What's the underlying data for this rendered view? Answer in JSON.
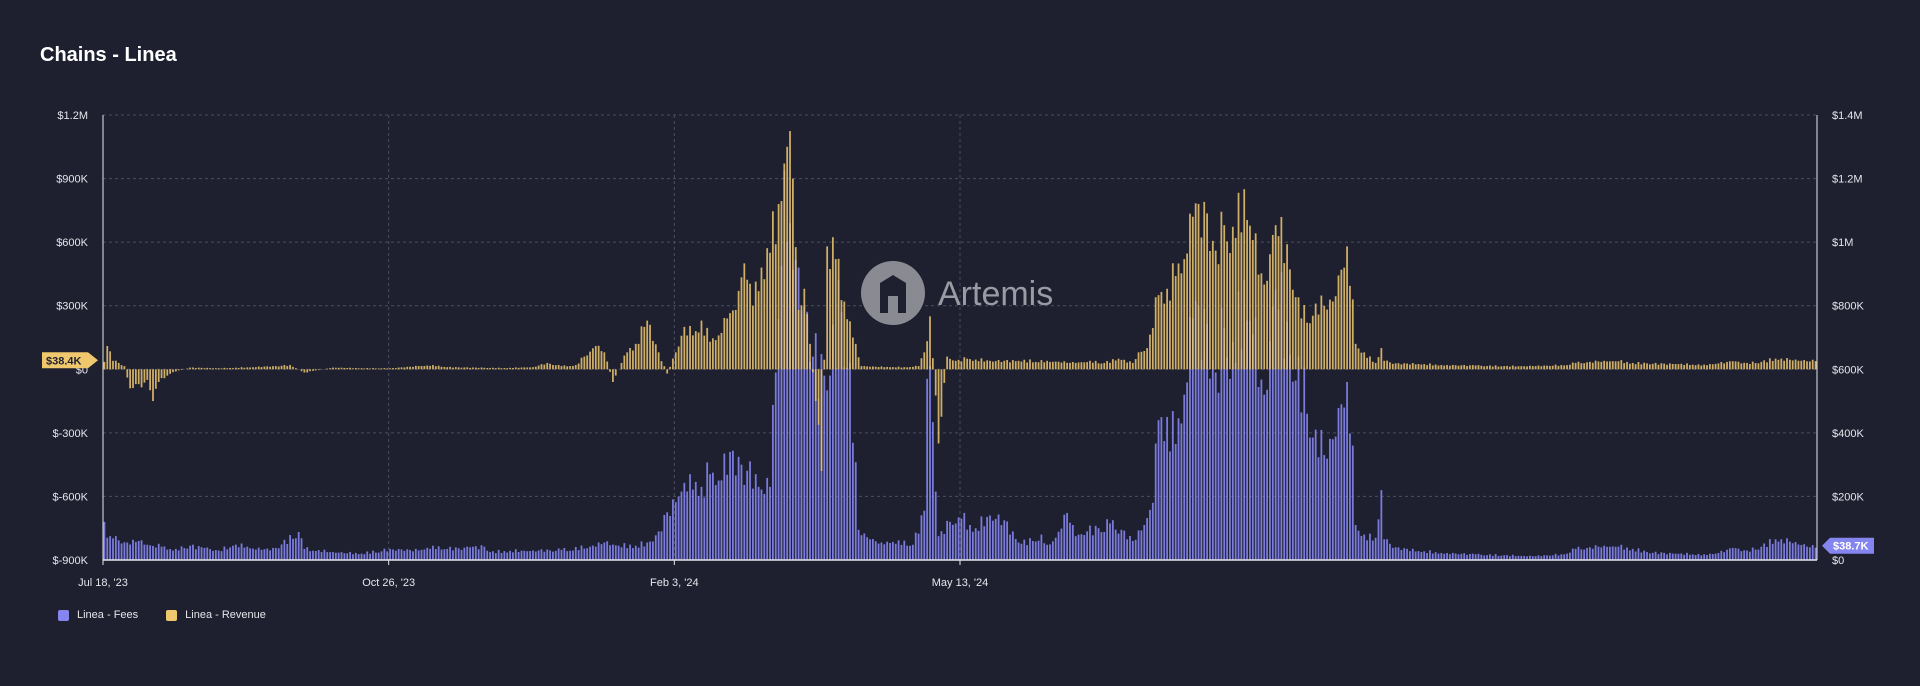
{
  "title": "Chains - Linea",
  "watermark": "Artemis",
  "colors": {
    "background": "#1e2030",
    "fees": "#8585f0",
    "revenue": "#efc86e",
    "grid": "#4a4d5e",
    "axis": "#e6e6ea"
  },
  "legend": [
    {
      "label": "Linea - Fees",
      "color": "#8585f0"
    },
    {
      "label": "Linea - Revenue",
      "color": "#efc86e"
    }
  ],
  "badges": {
    "revenue_last": "$38.4K",
    "fees_last": "$38.7K"
  },
  "chart_data": {
    "type": "bar",
    "title": "Chains - Linea",
    "x_start": "2023-07-18",
    "x_ticks": [
      "Jul 18, '23",
      "Oct 26, '23",
      "Feb 3, '24",
      "May 13, '24"
    ],
    "y_left": {
      "ticks": [
        "$1.2M",
        "$900K",
        "$600K",
        "$300K",
        "$0",
        "$-300K",
        "$-600K",
        "$-900K"
      ],
      "range": [
        -900000,
        1200000
      ]
    },
    "y_right": {
      "ticks": [
        "$1.4M",
        "$1.2M",
        "$1M",
        "$800K",
        "$600K",
        "$400K",
        "$200K",
        "$0"
      ],
      "range": [
        0,
        1400000
      ]
    },
    "grid": true,
    "legend_position": "bottom-left",
    "series": [
      {
        "name": "Linea - Fees",
        "axis": "right",
        "color": "#8585f0",
        "segments": [
          [
            0,
            120000
          ],
          [
            1,
            70000
          ],
          [
            2,
            75000
          ],
          [
            3,
            68000
          ],
          [
            5,
            62000
          ],
          [
            8,
            55000
          ],
          [
            12,
            60000
          ],
          [
            15,
            48000
          ],
          [
            20,
            42000
          ],
          [
            25,
            35000
          ],
          [
            30,
            45000
          ],
          [
            35,
            38000
          ],
          [
            40,
            30000
          ],
          [
            45,
            45000
          ],
          [
            48,
            52000
          ],
          [
            50,
            42000
          ],
          [
            55,
            32000
          ],
          [
            60,
            38000
          ],
          [
            68,
            88000
          ],
          [
            70,
            35000
          ],
          [
            80,
            25000
          ],
          [
            90,
            20000
          ],
          [
            100,
            35000
          ],
          [
            110,
            30000
          ],
          [
            115,
            45000
          ],
          [
            120,
            35000
          ],
          [
            128,
            40000
          ],
          [
            133,
            42000
          ],
          [
            135,
            25000
          ],
          [
            140,
            28000
          ],
          [
            150,
            30000
          ],
          [
            160,
            32000
          ],
          [
            170,
            42000
          ],
          [
            175,
            55000
          ],
          [
            180,
            45000
          ],
          [
            186,
            45000
          ],
          [
            190,
            55000
          ],
          [
            194,
            90000
          ],
          [
            197,
            150000
          ],
          [
            201,
            200000
          ],
          [
            205,
            270000
          ],
          [
            209,
            230000
          ],
          [
            212,
            270000
          ],
          [
            215,
            250000
          ],
          [
            219,
            340000
          ],
          [
            223,
            300000
          ],
          [
            228,
            270000
          ],
          [
            233,
            230000
          ],
          [
            235,
            590000
          ],
          [
            238,
            1225000
          ],
          [
            240,
            1060000
          ],
          [
            243,
            920000
          ],
          [
            245,
            800000
          ],
          [
            248,
            640000
          ],
          [
            252,
            580000
          ],
          [
            255,
            740000
          ],
          [
            258,
            780000
          ],
          [
            261,
            620000
          ],
          [
            264,
            95000
          ],
          [
            268,
            65000
          ],
          [
            272,
            55000
          ],
          [
            278,
            62000
          ],
          [
            283,
            48000
          ],
          [
            287,
            155000
          ],
          [
            288,
            570000
          ],
          [
            289,
            610000
          ],
          [
            291,
            215000
          ],
          [
            292,
            75000
          ],
          [
            296,
            120000
          ],
          [
            300,
            130000
          ],
          [
            305,
            100000
          ],
          [
            310,
            140000
          ],
          [
            315,
            125000
          ],
          [
            320,
            55000
          ],
          [
            325,
            60000
          ],
          [
            328,
            80000
          ],
          [
            330,
            48000
          ],
          [
            333,
            70000
          ],
          [
            337,
            148000
          ],
          [
            340,
            75000
          ],
          [
            344,
            90000
          ],
          [
            348,
            100000
          ],
          [
            352,
            115000
          ],
          [
            356,
            95000
          ],
          [
            360,
            60000
          ],
          [
            364,
            110000
          ],
          [
            367,
            180000
          ],
          [
            369,
            440000
          ],
          [
            372,
            450000
          ],
          [
            375,
            365000
          ],
          [
            378,
            520000
          ],
          [
            381,
            760000
          ],
          [
            385,
            790000
          ],
          [
            389,
            590000
          ],
          [
            392,
            730000
          ],
          [
            396,
            620000
          ],
          [
            399,
            880000
          ],
          [
            402,
            710000
          ],
          [
            406,
            520000
          ],
          [
            410,
            850000
          ],
          [
            414,
            750000
          ],
          [
            418,
            640000
          ],
          [
            421,
            460000
          ],
          [
            424,
            410000
          ],
          [
            427,
            330000
          ],
          [
            430,
            380000
          ],
          [
            433,
            490000
          ],
          [
            435,
            560000
          ],
          [
            437,
            360000
          ],
          [
            438,
            110000
          ],
          [
            441,
            80000
          ],
          [
            445,
            70000
          ],
          [
            447,
            220000
          ],
          [
            448,
            65000
          ],
          [
            452,
            40000
          ],
          [
            460,
            28000
          ],
          [
            470,
            22000
          ],
          [
            480,
            18000
          ],
          [
            490,
            15000
          ],
          [
            500,
            12000
          ],
          [
            510,
            18000
          ],
          [
            515,
            35000
          ],
          [
            520,
            40000
          ],
          [
            525,
            45000
          ],
          [
            530,
            42000
          ],
          [
            535,
            35000
          ],
          [
            540,
            25000
          ],
          [
            550,
            20000
          ],
          [
            560,
            18000
          ],
          [
            565,
            22000
          ],
          [
            570,
            38000
          ],
          [
            575,
            30000
          ],
          [
            580,
            42000
          ],
          [
            585,
            65000
          ],
          [
            590,
            58000
          ],
          [
            599,
            38700
          ]
        ]
      },
      {
        "name": "Linea - Revenue",
        "axis": "left",
        "color": "#efc86e",
        "segments": [
          [
            0,
            35000
          ],
          [
            1,
            110000
          ],
          [
            3,
            40000
          ],
          [
            5,
            30000
          ],
          [
            7,
            15000
          ],
          [
            9,
            -90000
          ],
          [
            11,
            -70000
          ],
          [
            13,
            -85000
          ],
          [
            15,
            -50000
          ],
          [
            17,
            -150000
          ],
          [
            19,
            -60000
          ],
          [
            22,
            -30000
          ],
          [
            25,
            -10000
          ],
          [
            30,
            8000
          ],
          [
            40,
            5000
          ],
          [
            50,
            9000
          ],
          [
            60,
            15000
          ],
          [
            65,
            20000
          ],
          [
            70,
            -15000
          ],
          [
            80,
            8000
          ],
          [
            90,
            5000
          ],
          [
            100,
            5000
          ],
          [
            110,
            15000
          ],
          [
            115,
            20000
          ],
          [
            120,
            10000
          ],
          [
            130,
            8000
          ],
          [
            140,
            6000
          ],
          [
            150,
            10000
          ],
          [
            155,
            30000
          ],
          [
            160,
            15000
          ],
          [
            165,
            20000
          ],
          [
            168,
            60000
          ],
          [
            172,
            110000
          ],
          [
            175,
            80000
          ],
          [
            178,
            -60000
          ],
          [
            181,
            30000
          ],
          [
            183,
            80000
          ],
          [
            186,
            120000
          ],
          [
            189,
            200000
          ],
          [
            191,
            210000
          ],
          [
            194,
            80000
          ],
          [
            197,
            -20000
          ],
          [
            200,
            80000
          ],
          [
            203,
            200000
          ],
          [
            206,
            160000
          ],
          [
            209,
            230000
          ],
          [
            212,
            130000
          ],
          [
            215,
            160000
          ],
          [
            218,
            240000
          ],
          [
            221,
            280000
          ],
          [
            224,
            500000
          ],
          [
            227,
            300000
          ],
          [
            230,
            480000
          ],
          [
            233,
            550000
          ],
          [
            236,
            780000
          ],
          [
            239,
            1050000
          ],
          [
            241,
            900000
          ],
          [
            243,
            280000
          ],
          [
            245,
            380000
          ],
          [
            247,
            120000
          ],
          [
            249,
            -150000
          ],
          [
            251,
            -480000
          ],
          [
            253,
            580000
          ],
          [
            256,
            520000
          ],
          [
            259,
            320000
          ],
          [
            262,
            150000
          ],
          [
            265,
            15000
          ],
          [
            270,
            12000
          ],
          [
            280,
            10000
          ],
          [
            285,
            15000
          ],
          [
            287,
            80000
          ],
          [
            289,
            250000
          ],
          [
            292,
            -350000
          ],
          [
            295,
            60000
          ],
          [
            298,
            40000
          ],
          [
            302,
            50000
          ],
          [
            310,
            40000
          ],
          [
            320,
            40000
          ],
          [
            330,
            40000
          ],
          [
            340,
            30000
          ],
          [
            345,
            40000
          ],
          [
            350,
            30000
          ],
          [
            355,
            50000
          ],
          [
            360,
            30000
          ],
          [
            362,
            80000
          ],
          [
            365,
            100000
          ],
          [
            369,
            350000
          ],
          [
            372,
            380000
          ],
          [
            375,
            440000
          ],
          [
            378,
            520000
          ],
          [
            381,
            720000
          ],
          [
            385,
            790000
          ],
          [
            389,
            560000
          ],
          [
            392,
            680000
          ],
          [
            396,
            620000
          ],
          [
            399,
            850000
          ],
          [
            402,
            610000
          ],
          [
            406,
            400000
          ],
          [
            410,
            680000
          ],
          [
            414,
            590000
          ],
          [
            418,
            340000
          ],
          [
            421,
            220000
          ],
          [
            424,
            310000
          ],
          [
            427,
            300000
          ],
          [
            430,
            320000
          ],
          [
            433,
            470000
          ],
          [
            435,
            580000
          ],
          [
            437,
            330000
          ],
          [
            438,
            120000
          ],
          [
            441,
            80000
          ],
          [
            445,
            30000
          ],
          [
            447,
            100000
          ],
          [
            448,
            40000
          ],
          [
            452,
            28000
          ],
          [
            460,
            25000
          ],
          [
            470,
            20000
          ],
          [
            480,
            18000
          ],
          [
            490,
            15000
          ],
          [
            500,
            15000
          ],
          [
            510,
            20000
          ],
          [
            515,
            30000
          ],
          [
            520,
            35000
          ],
          [
            525,
            40000
          ],
          [
            530,
            38000
          ],
          [
            535,
            30000
          ],
          [
            540,
            28000
          ],
          [
            550,
            25000
          ],
          [
            560,
            22000
          ],
          [
            565,
            28000
          ],
          [
            570,
            38000
          ],
          [
            575,
            30000
          ],
          [
            580,
            35000
          ],
          [
            585,
            50000
          ],
          [
            590,
            45000
          ],
          [
            599,
            38400
          ]
        ]
      }
    ]
  }
}
